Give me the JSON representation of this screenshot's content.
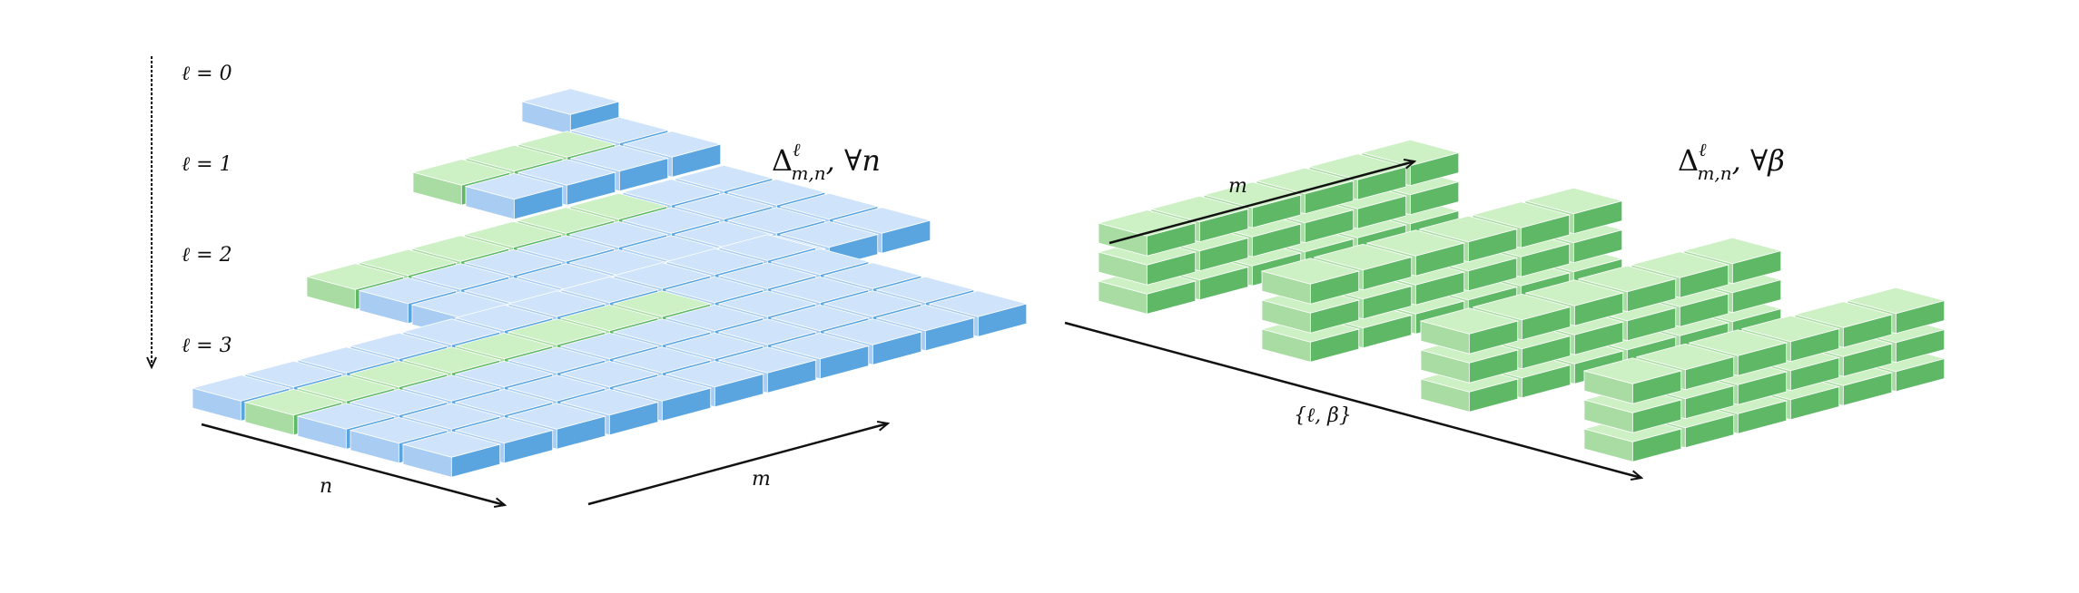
{
  "left_panel": {
    "level_labels": [
      "ℓ = 0",
      "ℓ = 1",
      "ℓ = 2",
      "ℓ = 3"
    ],
    "title": {
      "symbol": "Δ",
      "sup": "ℓ",
      "sub": "m,n",
      "tail": ", ∀n"
    },
    "axis_n": "n",
    "axis_m": "m",
    "grid_sizes": [
      {
        "level": 0,
        "rows": 1,
        "cols": 1
      },
      {
        "level": 1,
        "rows": 2,
        "cols": 4
      },
      {
        "level": 2,
        "rows": 4,
        "cols": 8
      },
      {
        "level": 3,
        "rows": 5,
        "cols": 11
      }
    ]
  },
  "right_panel": {
    "title": {
      "symbol": "Δ",
      "sup": "ℓ",
      "sub": "m,n",
      "tail": ", ∀β"
    },
    "axis_m": "m",
    "axis_lb": "{ℓ, β}",
    "group_count": 4
  },
  "colors": {
    "blue_top": "#cfe4fa",
    "blue_side": "#5aa5e0",
    "blue_front": "#a9cdf2",
    "green_top": "#cdf0c5",
    "green_side": "#5fb866",
    "green_front": "#a9dca2"
  }
}
